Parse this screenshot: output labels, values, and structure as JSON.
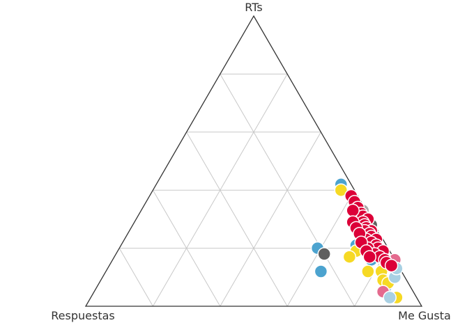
{
  "chart_data": {
    "type": "ternary-scatter",
    "vertices": {
      "top": "RTs",
      "left": "Respuestas",
      "right": "Me Gusta"
    },
    "grid": true,
    "grid_divisions": 5,
    "colors": {
      "red": "#dc0038",
      "blue": "#4ca3cf",
      "yellow": "#f6d924",
      "darkgray": "#5f5f5f",
      "gray": "#a9a9a9",
      "pink": "#e46a8e",
      "lightblue": "#a8d0e3"
    },
    "series": [
      {
        "color": "blue",
        "points": [
          {
            "rts": 0.42,
            "me_gusta": 0.55,
            "respuestas": 0.03
          },
          {
            "rts": 0.24,
            "me_gusta": 0.71,
            "respuestas": 0.05
          },
          {
            "rts": 0.22,
            "me_gusta": 0.74,
            "respuestas": 0.04
          },
          {
            "rts": 0.2,
            "me_gusta": 0.76,
            "respuestas": 0.04
          },
          {
            "rts": 0.21,
            "me_gusta": 0.7,
            "respuestas": 0.09
          },
          {
            "rts": 0.16,
            "me_gusta": 0.77,
            "respuestas": 0.07
          },
          {
            "rts": 0.07,
            "me_gusta": 0.86,
            "respuestas": 0.07
          },
          {
            "rts": 0.2,
            "me_gusta": 0.59,
            "respuestas": 0.21
          },
          {
            "rts": 0.12,
            "me_gusta": 0.64,
            "respuestas": 0.24
          }
        ]
      },
      {
        "color": "yellow",
        "points": [
          {
            "rts": 0.4,
            "me_gusta": 0.56,
            "respuestas": 0.04
          },
          {
            "rts": 0.33,
            "me_gusta": 0.63,
            "respuestas": 0.04
          },
          {
            "rts": 0.28,
            "me_gusta": 0.7,
            "respuestas": 0.02
          },
          {
            "rts": 0.25,
            "me_gusta": 0.72,
            "respuestas": 0.03
          },
          {
            "rts": 0.22,
            "me_gusta": 0.75,
            "respuestas": 0.03
          },
          {
            "rts": 0.18,
            "me_gusta": 0.78,
            "respuestas": 0.04
          },
          {
            "rts": 0.19,
            "me_gusta": 0.71,
            "respuestas": 0.1
          },
          {
            "rts": 0.17,
            "me_gusta": 0.7,
            "respuestas": 0.13
          },
          {
            "rts": 0.12,
            "me_gusta": 0.82,
            "respuestas": 0.06
          },
          {
            "rts": 0.09,
            "me_gusta": 0.84,
            "respuestas": 0.07
          },
          {
            "rts": 0.08,
            "me_gusta": 0.86,
            "respuestas": 0.06
          },
          {
            "rts": 0.03,
            "me_gusta": 0.91,
            "respuestas": 0.06
          },
          {
            "rts": 0.12,
            "me_gusta": 0.78,
            "respuestas": 0.1
          }
        ]
      },
      {
        "color": "darkgray",
        "points": [
          {
            "rts": 0.28,
            "me_gusta": 0.71,
            "respuestas": 0.01
          },
          {
            "rts": 0.24,
            "me_gusta": 0.74,
            "respuestas": 0.02
          },
          {
            "rts": 0.18,
            "me_gusta": 0.62,
            "respuestas": 0.2
          }
        ]
      },
      {
        "color": "gray",
        "points": [
          {
            "rts": 0.33,
            "me_gusta": 0.66,
            "respuestas": 0.01
          }
        ]
      },
      {
        "color": "pink",
        "points": [
          {
            "rts": 0.05,
            "me_gusta": 0.86,
            "respuestas": 0.09
          },
          {
            "rts": 0.16,
            "me_gusta": 0.84,
            "respuestas": 0.0
          }
        ]
      },
      {
        "color": "lightblue",
        "points": [
          {
            "rts": 0.03,
            "me_gusta": 0.89,
            "respuestas": 0.08
          },
          {
            "rts": 0.1,
            "me_gusta": 0.87,
            "respuestas": 0.03
          },
          {
            "rts": 0.13,
            "me_gusta": 0.86,
            "respuestas": 0.01
          }
        ]
      },
      {
        "color": "red",
        "points": [
          {
            "rts": 0.38,
            "me_gusta": 0.6,
            "respuestas": 0.02
          },
          {
            "rts": 0.36,
            "me_gusta": 0.62,
            "respuestas": 0.02
          },
          {
            "rts": 0.34,
            "me_gusta": 0.64,
            "respuestas": 0.02
          },
          {
            "rts": 0.32,
            "me_gusta": 0.66,
            "respuestas": 0.02
          },
          {
            "rts": 0.31,
            "me_gusta": 0.67,
            "respuestas": 0.02
          },
          {
            "rts": 0.3,
            "me_gusta": 0.69,
            "respuestas": 0.01
          },
          {
            "rts": 0.29,
            "me_gusta": 0.68,
            "respuestas": 0.03
          },
          {
            "rts": 0.28,
            "me_gusta": 0.69,
            "respuestas": 0.03
          },
          {
            "rts": 0.27,
            "me_gusta": 0.7,
            "respuestas": 0.03
          },
          {
            "rts": 0.26,
            "me_gusta": 0.72,
            "respuestas": 0.02
          },
          {
            "rts": 0.26,
            "me_gusta": 0.7,
            "respuestas": 0.04
          },
          {
            "rts": 0.25,
            "me_gusta": 0.72,
            "respuestas": 0.03
          },
          {
            "rts": 0.24,
            "me_gusta": 0.73,
            "respuestas": 0.03
          },
          {
            "rts": 0.23,
            "me_gusta": 0.75,
            "respuestas": 0.02
          },
          {
            "rts": 0.23,
            "me_gusta": 0.72,
            "respuestas": 0.05
          },
          {
            "rts": 0.22,
            "me_gusta": 0.74,
            "respuestas": 0.04
          },
          {
            "rts": 0.21,
            "me_gusta": 0.76,
            "respuestas": 0.03
          },
          {
            "rts": 0.2,
            "me_gusta": 0.77,
            "respuestas": 0.03
          },
          {
            "rts": 0.2,
            "me_gusta": 0.74,
            "respuestas": 0.06
          },
          {
            "rts": 0.19,
            "me_gusta": 0.79,
            "respuestas": 0.02
          },
          {
            "rts": 0.18,
            "me_gusta": 0.77,
            "respuestas": 0.05
          },
          {
            "rts": 0.17,
            "me_gusta": 0.79,
            "respuestas": 0.04
          },
          {
            "rts": 0.16,
            "me_gusta": 0.81,
            "respuestas": 0.03
          },
          {
            "rts": 0.15,
            "me_gusta": 0.82,
            "respuestas": 0.03
          },
          {
            "rts": 0.14,
            "me_gusta": 0.84,
            "respuestas": 0.02
          },
          {
            "rts": 0.33,
            "me_gusta": 0.63,
            "respuestas": 0.04
          },
          {
            "rts": 0.29,
            "me_gusta": 0.65,
            "respuestas": 0.06
          },
          {
            "rts": 0.27,
            "me_gusta": 0.67,
            "respuestas": 0.06
          },
          {
            "rts": 0.25,
            "me_gusta": 0.69,
            "respuestas": 0.06
          },
          {
            "rts": 0.22,
            "me_gusta": 0.71,
            "respuestas": 0.07
          },
          {
            "rts": 0.19,
            "me_gusta": 0.74,
            "respuestas": 0.07
          },
          {
            "rts": 0.17,
            "me_gusta": 0.76,
            "respuestas": 0.07
          }
        ]
      }
    ]
  }
}
